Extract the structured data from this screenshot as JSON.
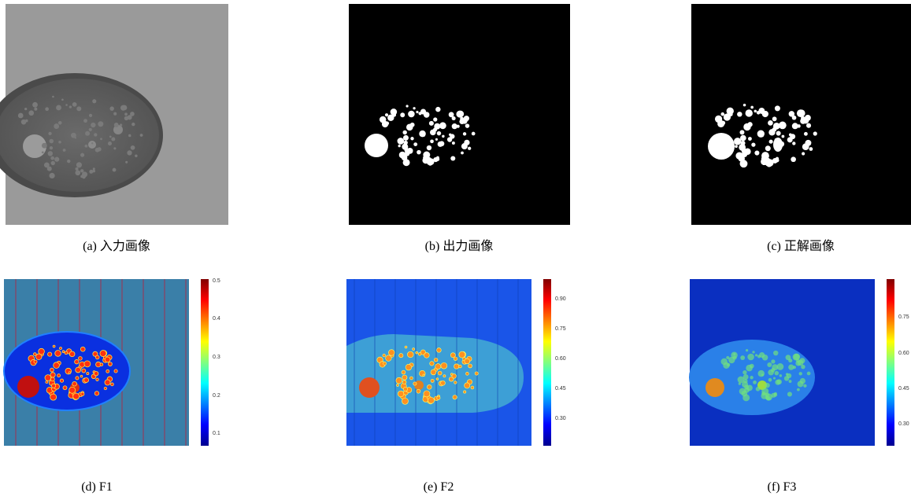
{
  "panels": [
    {
      "caption": "(a) 入力画像"
    },
    {
      "caption": "(b) 出力画像"
    },
    {
      "caption": "(c) 正解画像"
    },
    {
      "caption": "(d) F1",
      "colorbar_ticks": [
        "0.5",
        "0.4",
        "0.3",
        "0.2",
        "0.1"
      ]
    },
    {
      "caption": "(e) F2",
      "colorbar_ticks": [
        "0.90",
        "0.75",
        "0.60",
        "0.45",
        "0.30"
      ]
    },
    {
      "caption": "(f) F3",
      "colorbar_ticks": [
        "0.75",
        "0.60",
        "0.45",
        "0.30"
      ]
    }
  ]
}
